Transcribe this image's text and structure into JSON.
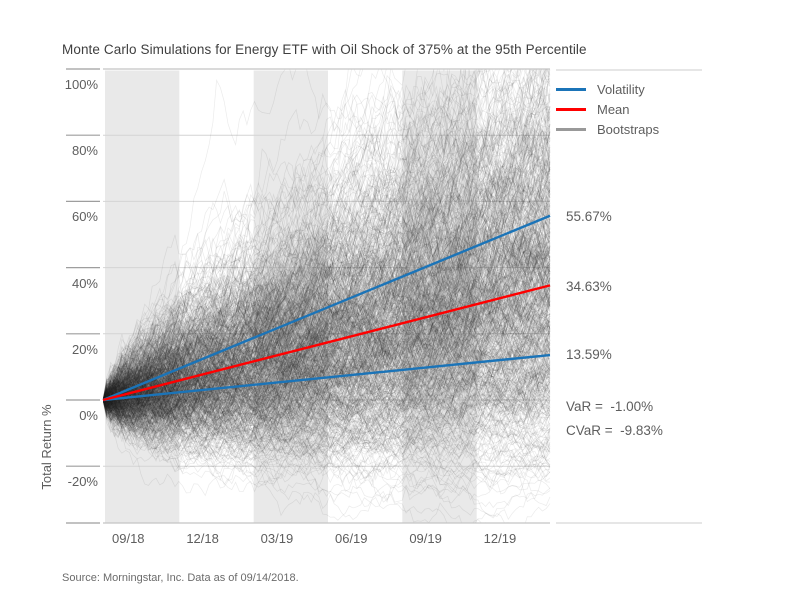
{
  "title": "Monte Carlo Simulations for Energy ETF with Oil Shock of 375% at the 95th Percentile",
  "source": "Source: Morningstar, Inc. Data as of 09/14/2018.",
  "colors": {
    "volatility": "#1b74b8",
    "mean": "#ff0000",
    "bootstraps": "#999999",
    "bootstrap_stroke": "#2e2e2e",
    "band": "#e9e9e9",
    "gridline": "#d4d4d4",
    "axis_border": "#c4c4c4",
    "panel_border": "#d6d6d6",
    "tick": "#9e9e9e",
    "text_primary": "#3f3f3f",
    "text_secondary": "#5e5e5e"
  },
  "legend": {
    "items": [
      {
        "label": "Volatility",
        "color_key": "volatility"
      },
      {
        "label": "Mean",
        "color_key": "mean"
      },
      {
        "label": "Bootstraps",
        "color_key": "bootstraps"
      }
    ]
  },
  "chart_data": {
    "type": "line",
    "title": "Monte Carlo Simulations for Energy ETF with Oil Shock of 375% at the 95th Percentile",
    "xlabel": "",
    "ylabel": "Total Return %",
    "x_tick_labels": [
      "09/18",
      "12/18",
      "03/19",
      "06/19",
      "09/19",
      "12/19"
    ],
    "y_tick_labels": [
      "100%",
      "80%",
      "60%",
      "40%",
      "20%",
      "0%",
      "-20%"
    ],
    "y_tick_values": [
      100,
      80,
      60,
      40,
      20,
      0,
      -20
    ],
    "ylim": [
      -37.5,
      100
    ],
    "grid": true,
    "legend_position": "right",
    "shaded_quarter_indices": [
      0,
      2,
      4
    ],
    "series": [
      {
        "name": "Volatility (upper band)",
        "type": "straight",
        "start_pct": 0,
        "end_pct": 55.67,
        "color_key": "volatility",
        "width": 2.4
      },
      {
        "name": "Volatility (lower band)",
        "type": "straight",
        "start_pct": 0,
        "end_pct": 13.59,
        "color_key": "volatility",
        "width": 2.4
      },
      {
        "name": "Mean",
        "type": "straight",
        "start_pct": 0,
        "end_pct": 34.63,
        "color_key": "mean",
        "width": 2.4
      }
    ],
    "bootstraps": {
      "name": "Bootstraps",
      "count": 780,
      "steps": 118,
      "drift": 0.33,
      "volatility": 0.25,
      "seed": 1337,
      "start_pct": 0,
      "opacity": 0.095,
      "stroke_width": 0.7
    },
    "annotations": [
      {
        "label": "55.67%",
        "value_pct": 55.67
      },
      {
        "label": "34.63%",
        "value_pct": 34.63
      },
      {
        "label": "13.59%",
        "value_pct": 13.59
      },
      {
        "label": "VaR =  -1.00%",
        "value_pct": -1.0
      },
      {
        "label": "CVaR =  -9.83%",
        "value_pct": -9.83
      }
    ]
  }
}
